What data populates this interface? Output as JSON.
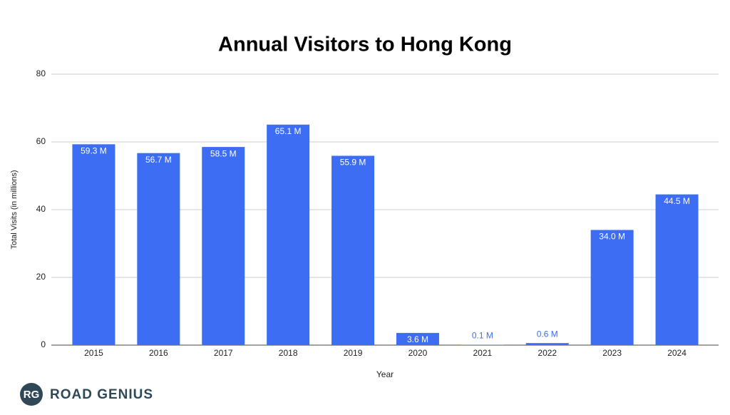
{
  "chart_data": {
    "type": "bar",
    "title": "Annual Visitors to Hong Kong",
    "x_label": "Year",
    "y_label": "Total Visits (in millions)",
    "categories": [
      "2015",
      "2016",
      "2017",
      "2018",
      "2019",
      "2020",
      "2021",
      "2022",
      "2023",
      "2024"
    ],
    "values": [
      59.3,
      56.7,
      58.5,
      65.1,
      55.9,
      3.6,
      0.1,
      0.6,
      34.0,
      44.5
    ],
    "value_labels": [
      "59.3 M",
      "56.7 M",
      "58.5 M",
      "65.1 M",
      "55.9 M",
      "3.6 M",
      "0.1 M",
      "0.6 M",
      "34.0 M",
      "44.5 M"
    ],
    "color": "#3d6df2",
    "ylim": [
      0,
      80
    ],
    "yticks": [
      0,
      20,
      40,
      60,
      80
    ],
    "grid": true
  },
  "branding": {
    "logo": "RG",
    "name": "ROAD GENIUS"
  }
}
